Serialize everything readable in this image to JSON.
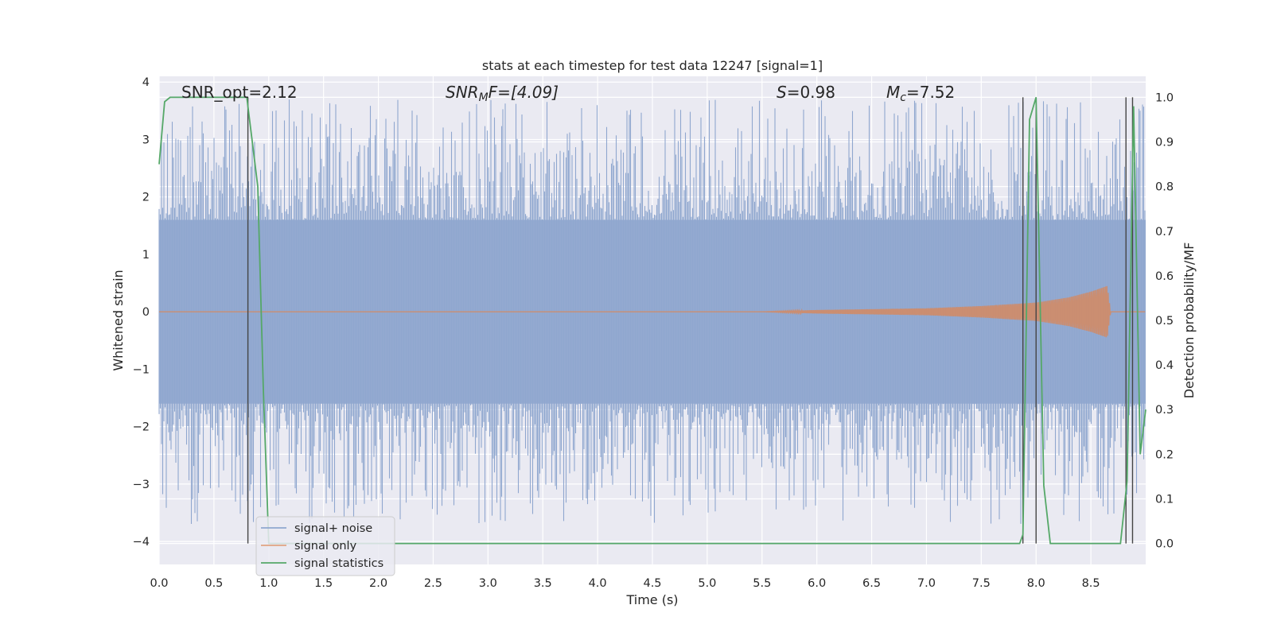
{
  "chart_data": {
    "type": "line",
    "title": "stats at each timestep for test data 12247 [signal=1]",
    "xlabel": "Time (s)",
    "ylabel": "Whitened strain",
    "y2label": "Detection probability/MF",
    "xlim": [
      0.0,
      9.0
    ],
    "ylim": [
      -4.4,
      4.1
    ],
    "y2lim": [
      -0.047,
      1.047
    ],
    "xticks": [
      "0.0",
      "0.5",
      "1.0",
      "1.5",
      "2.0",
      "2.5",
      "3.0",
      "3.5",
      "4.0",
      "4.5",
      "5.0",
      "5.5",
      "6.0",
      "6.5",
      "7.0",
      "7.5",
      "8.0",
      "8.5"
    ],
    "yticks": [
      "4",
      "3",
      "2",
      "1",
      "0",
      "−1",
      "−2",
      "−3",
      "−4"
    ],
    "y2ticks": [
      "1.0",
      "0.9",
      "0.8",
      "0.7",
      "0.6",
      "0.5",
      "0.4",
      "0.3",
      "0.2",
      "0.1",
      "0.0"
    ],
    "grid": true,
    "legend_position": "lower-left",
    "annotations": {
      "snr_opt": "SNR_opt=2.12",
      "snr_mf_prefix": "SNR",
      "snr_mf_sub": "M",
      "snr_mf_suffix": "F=[4.09]",
      "s_var": "S",
      "s_value": "=0.98",
      "mc_var": "M",
      "mc_sub": "c",
      "mc_value": "=7.52"
    },
    "series": [
      {
        "name": "signal+ noise",
        "color": "#4c72b0",
        "axis": "left",
        "description_points": {
          "band_envelope": [
            -1.6,
            1.6
          ],
          "spike_max": 3.75,
          "spike_min": -4.0
        }
      },
      {
        "name": "signal only",
        "color": "#dd8452",
        "axis": "left",
        "points": [
          [
            0.0,
            0.0
          ],
          [
            5.5,
            0.0
          ],
          [
            6.0,
            0.03
          ],
          [
            7.0,
            0.06
          ],
          [
            7.5,
            0.1
          ],
          [
            8.0,
            0.16
          ],
          [
            8.3,
            0.25
          ],
          [
            8.5,
            0.35
          ],
          [
            8.65,
            0.45
          ],
          [
            8.68,
            0.0
          ],
          [
            9.0,
            0.0
          ]
        ]
      },
      {
        "name": "signal statistics",
        "color": "#55a868",
        "axis": "right",
        "points": [
          [
            0.0,
            0.85
          ],
          [
            0.05,
            0.99
          ],
          [
            0.1,
            1.0
          ],
          [
            0.8,
            1.0
          ],
          [
            0.9,
            0.8
          ],
          [
            0.95,
            0.35
          ],
          [
            1.0,
            0.0
          ],
          [
            7.85,
            0.0
          ],
          [
            7.88,
            0.02
          ],
          [
            7.94,
            0.95
          ],
          [
            8.0,
            1.0
          ],
          [
            8.07,
            0.13
          ],
          [
            8.13,
            0.0
          ],
          [
            8.77,
            0.0
          ],
          [
            8.83,
            0.14
          ],
          [
            8.89,
            0.98
          ],
          [
            8.95,
            0.2
          ],
          [
            9.0,
            0.3
          ]
        ]
      }
    ],
    "vertical_lines": [
      0.81,
      7.88,
      8.0,
      8.82,
      8.88
    ]
  },
  "legend": {
    "items": [
      {
        "label": "signal+ noise",
        "color": "#4c72b0"
      },
      {
        "label": "signal only",
        "color": "#dd8452"
      },
      {
        "label": "signal statistics",
        "color": "#55a868"
      }
    ]
  }
}
